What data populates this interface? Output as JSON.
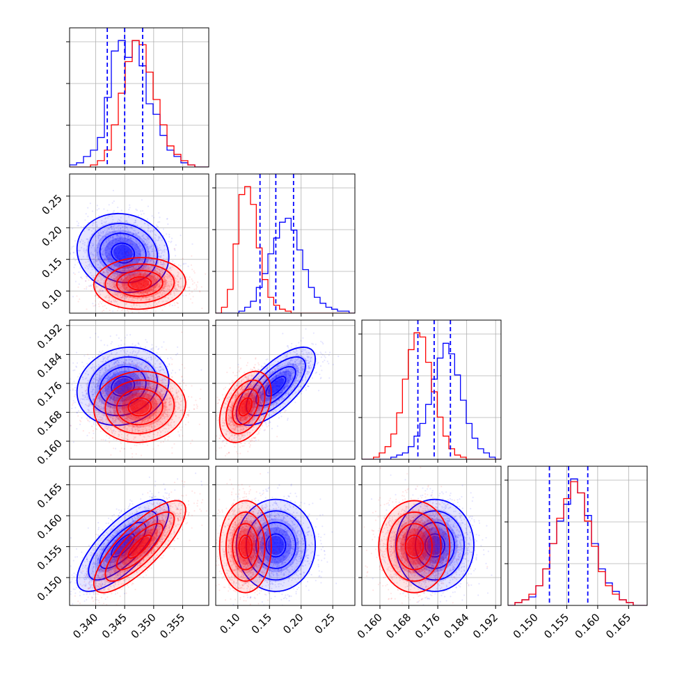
{
  "colors": {
    "blue": "#0000ff",
    "red": "#ff0000",
    "grid": "#b0b0b0",
    "axis": "#000000"
  },
  "chart_data": {
    "type": "corner",
    "title": "",
    "grid": true,
    "dims": [
      {
        "range": [
          0.3355,
          0.3595
        ],
        "ticks": [
          0.34,
          0.345,
          0.35,
          0.355
        ],
        "tick_labels": [
          "0.340",
          "0.345",
          "0.350",
          "0.355"
        ]
      },
      {
        "range": [
          0.065,
          0.285
        ],
        "ticks": [
          0.1,
          0.15,
          0.2,
          0.25
        ],
        "tick_labels": [
          "0.10",
          "0.15",
          "0.20",
          "0.25"
        ]
      },
      {
        "range": [
          0.155,
          0.1935
        ],
        "ticks": [
          0.16,
          0.168,
          0.176,
          0.184,
          0.192
        ],
        "tick_labels": [
          "0.160",
          "0.168",
          "0.176",
          "0.184",
          "0.192"
        ]
      },
      {
        "range": [
          0.1455,
          0.168
        ],
        "ticks": [
          0.15,
          0.155,
          0.16,
          0.165
        ],
        "tick_labels": [
          "0.150",
          "0.155",
          "0.160",
          "0.165"
        ]
      }
    ],
    "quantiles_blue": [
      [
        0.342,
        0.345,
        0.3481
      ],
      [
        0.135,
        0.16,
        0.188
      ],
      [
        0.1705,
        0.175,
        0.1795
      ],
      [
        0.1522,
        0.1553,
        0.1584
      ]
    ],
    "series": [
      {
        "name": "blue",
        "color": "#0000ff",
        "mean": [
          0.3447,
          0.16,
          0.1752,
          0.1552
        ],
        "sd": [
          0.0033,
          0.026,
          0.0045,
          0.0031
        ],
        "corr": [
          [
            0,
            1,
            -0.1
          ],
          [
            0,
            2,
            0.15
          ],
          [
            0,
            3,
            0.75
          ],
          [
            1,
            2,
            0.7
          ],
          [
            1,
            3,
            0.0
          ],
          [
            2,
            3,
            0.0
          ]
        ],
        "hist": [
          {
            "edges": [
              0.3355,
              0.3595
            ],
            "counts": [
              1,
              2,
              5,
              8,
              14,
              33,
              55,
              60,
              52,
              60,
              48,
              30,
              25,
              15,
              8,
              5,
              2,
              1,
              0,
              0
            ]
          },
          {
            "edges": [
              0.065,
              0.285
            ],
            "counts": [
              0,
              0,
              0,
              0,
              1,
              3,
              6,
              13,
              20,
              30,
              38,
              46,
              48,
              42,
              32,
              22,
              13,
              8,
              5,
              3,
              2,
              1,
              1,
              0
            ]
          },
          {
            "edges": [
              0.155,
              0.1935
            ],
            "counts": [
              0,
              0,
              0,
              0,
              0,
              1,
              2,
              3,
              6,
              11,
              17,
              26,
              38,
              48,
              55,
              50,
              40,
              28,
              17,
              10,
              5,
              3,
              1,
              0
            ]
          },
          {
            "edges": [
              0.1455,
              0.168
            ],
            "counts": [
              0,
              1,
              2,
              3,
              7,
              13,
              22,
              30,
              36,
              45,
              40,
              32,
              22,
              13,
              8,
              5,
              2,
              1,
              0,
              0
            ]
          }
        ]
      },
      {
        "name": "red",
        "color": "#ff0000",
        "mean": [
          0.3476,
          0.112,
          0.1695,
          0.155
        ],
        "sd": [
          0.0033,
          0.017,
          0.0041,
          0.0031
        ],
        "corr": [
          [
            0,
            1,
            0.05
          ],
          [
            0,
            2,
            0.05
          ],
          [
            0,
            3,
            0.8
          ],
          [
            1,
            2,
            0.4
          ],
          [
            1,
            3,
            0.0
          ],
          [
            2,
            3,
            0.0
          ]
        ],
        "hist": [
          {
            "edges": [
              0.3355,
              0.3595
            ],
            "counts": [
              0,
              0,
              0,
              1,
              3,
              8,
              20,
              35,
              50,
              60,
              58,
              45,
              32,
              20,
              10,
              6,
              3,
              1,
              0,
              0
            ]
          },
          {
            "edges": [
              0.065,
              0.285
            ],
            "counts": [
              0,
              3,
              12,
              35,
              60,
              64,
              55,
              33,
              17,
              8,
              4,
              2,
              1,
              0,
              0,
              0,
              0,
              0,
              0,
              0,
              0,
              0,
              0,
              0
            ]
          },
          {
            "edges": [
              0.155,
              0.1935
            ],
            "counts": [
              0,
              0,
              1,
              3,
              6,
              12,
              22,
              38,
              52,
              60,
              58,
              46,
              32,
              20,
              11,
              5,
              2,
              1,
              0,
              0,
              0,
              0,
              0,
              0
            ]
          },
          {
            "edges": [
              0.1455,
              0.168
            ],
            "counts": [
              0,
              1,
              2,
              4,
              7,
              13,
              22,
              31,
              38,
              44,
              40,
              30,
              21,
              12,
              7,
              4,
              2,
              1,
              0,
              0
            ]
          }
        ]
      }
    ]
  }
}
